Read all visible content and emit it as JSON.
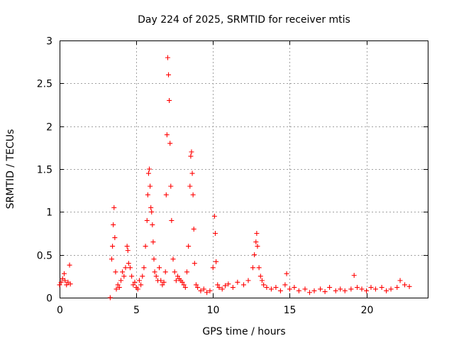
{
  "chart_data": {
    "type": "scatter",
    "title": "Day 224 of 2025, SRMTID for receiver mtis",
    "xlabel": "GPS time / hours",
    "ylabel": "SRMTID / TECUs",
    "xlim": [
      0,
      24
    ],
    "ylim": [
      0,
      3
    ],
    "xticks": [
      0,
      5,
      10,
      15,
      20
    ],
    "yticks": [
      0,
      0.5,
      1,
      1.5,
      2,
      2.5,
      3
    ],
    "xtick_labels": [
      "0",
      "5",
      "10",
      "15",
      "20"
    ],
    "ytick_labels": [
      "0",
      "0.5",
      "1",
      "1.5",
      "2",
      "2.5",
      "3"
    ],
    "grid": true,
    "marker": "plus",
    "color": "#ff0000",
    "series": [
      {
        "name": "mtis",
        "x": [
          0.0,
          0.1,
          0.2,
          0.3,
          0.35,
          0.45,
          0.55,
          0.65,
          0.7,
          3.3,
          3.4,
          3.45,
          3.5,
          3.55,
          3.6,
          3.65,
          3.7,
          3.8,
          3.9,
          4.0,
          4.1,
          4.2,
          4.3,
          4.4,
          4.45,
          4.5,
          4.6,
          4.7,
          4.8,
          4.9,
          5.0,
          5.1,
          5.2,
          5.3,
          5.4,
          5.5,
          5.6,
          5.7,
          5.75,
          5.8,
          5.85,
          5.9,
          5.95,
          6.0,
          6.05,
          6.1,
          6.15,
          6.2,
          6.3,
          6.4,
          6.5,
          6.6,
          6.7,
          6.8,
          6.9,
          6.95,
          7.0,
          7.05,
          7.1,
          7.15,
          7.2,
          7.25,
          7.3,
          7.4,
          7.5,
          7.6,
          7.7,
          7.8,
          7.9,
          8.0,
          8.1,
          8.2,
          8.3,
          8.4,
          8.5,
          8.55,
          8.6,
          8.65,
          8.7,
          8.75,
          8.8,
          8.9,
          9.0,
          9.2,
          9.4,
          9.6,
          9.8,
          10.0,
          10.1,
          10.15,
          10.2,
          10.3,
          10.4,
          10.6,
          10.8,
          11.0,
          11.3,
          11.6,
          12.0,
          12.3,
          12.6,
          12.7,
          12.8,
          12.85,
          12.9,
          13.0,
          13.1,
          13.2,
          13.3,
          13.5,
          13.8,
          14.1,
          14.4,
          14.7,
          14.8,
          15.0,
          15.3,
          15.6,
          16.0,
          16.3,
          16.6,
          17.0,
          17.3,
          17.6,
          18.0,
          18.3,
          18.6,
          19.0,
          19.2,
          19.4,
          19.7,
          20.0,
          20.3,
          20.6,
          21.0,
          21.3,
          21.6,
          22.0,
          22.2,
          22.5,
          22.8
        ],
        "y": [
          0.15,
          0.18,
          0.22,
          0.28,
          0.2,
          0.15,
          0.18,
          0.38,
          0.16,
          0.0,
          0.45,
          0.6,
          0.85,
          1.05,
          0.7,
          0.3,
          0.1,
          0.15,
          0.12,
          0.2,
          0.3,
          0.25,
          0.35,
          0.6,
          0.55,
          0.4,
          0.35,
          0.25,
          0.15,
          0.18,
          0.12,
          0.1,
          0.2,
          0.15,
          0.25,
          0.35,
          0.6,
          0.9,
          1.2,
          1.45,
          1.5,
          1.3,
          1.05,
          1.0,
          0.85,
          0.65,
          0.45,
          0.3,
          0.25,
          0.2,
          0.35,
          0.2,
          0.15,
          0.18,
          0.3,
          1.2,
          1.9,
          2.8,
          2.6,
          2.3,
          1.8,
          1.3,
          0.9,
          0.45,
          0.3,
          0.2,
          0.25,
          0.22,
          0.2,
          0.18,
          0.15,
          0.12,
          0.3,
          0.6,
          1.3,
          1.65,
          1.7,
          1.45,
          1.2,
          0.8,
          0.4,
          0.15,
          0.12,
          0.08,
          0.1,
          0.06,
          0.08,
          0.35,
          0.95,
          0.75,
          0.42,
          0.15,
          0.12,
          0.1,
          0.14,
          0.16,
          0.12,
          0.18,
          0.15,
          0.2,
          0.35,
          0.5,
          0.65,
          0.75,
          0.6,
          0.35,
          0.25,
          0.2,
          0.15,
          0.12,
          0.1,
          0.12,
          0.08,
          0.15,
          0.28,
          0.1,
          0.12,
          0.08,
          0.1,
          0.06,
          0.08,
          0.1,
          0.07,
          0.12,
          0.08,
          0.1,
          0.08,
          0.1,
          0.26,
          0.12,
          0.1,
          0.08,
          0.12,
          0.1,
          0.12,
          0.08,
          0.1,
          0.12,
          0.2,
          0.15,
          0.13
        ]
      }
    ]
  }
}
